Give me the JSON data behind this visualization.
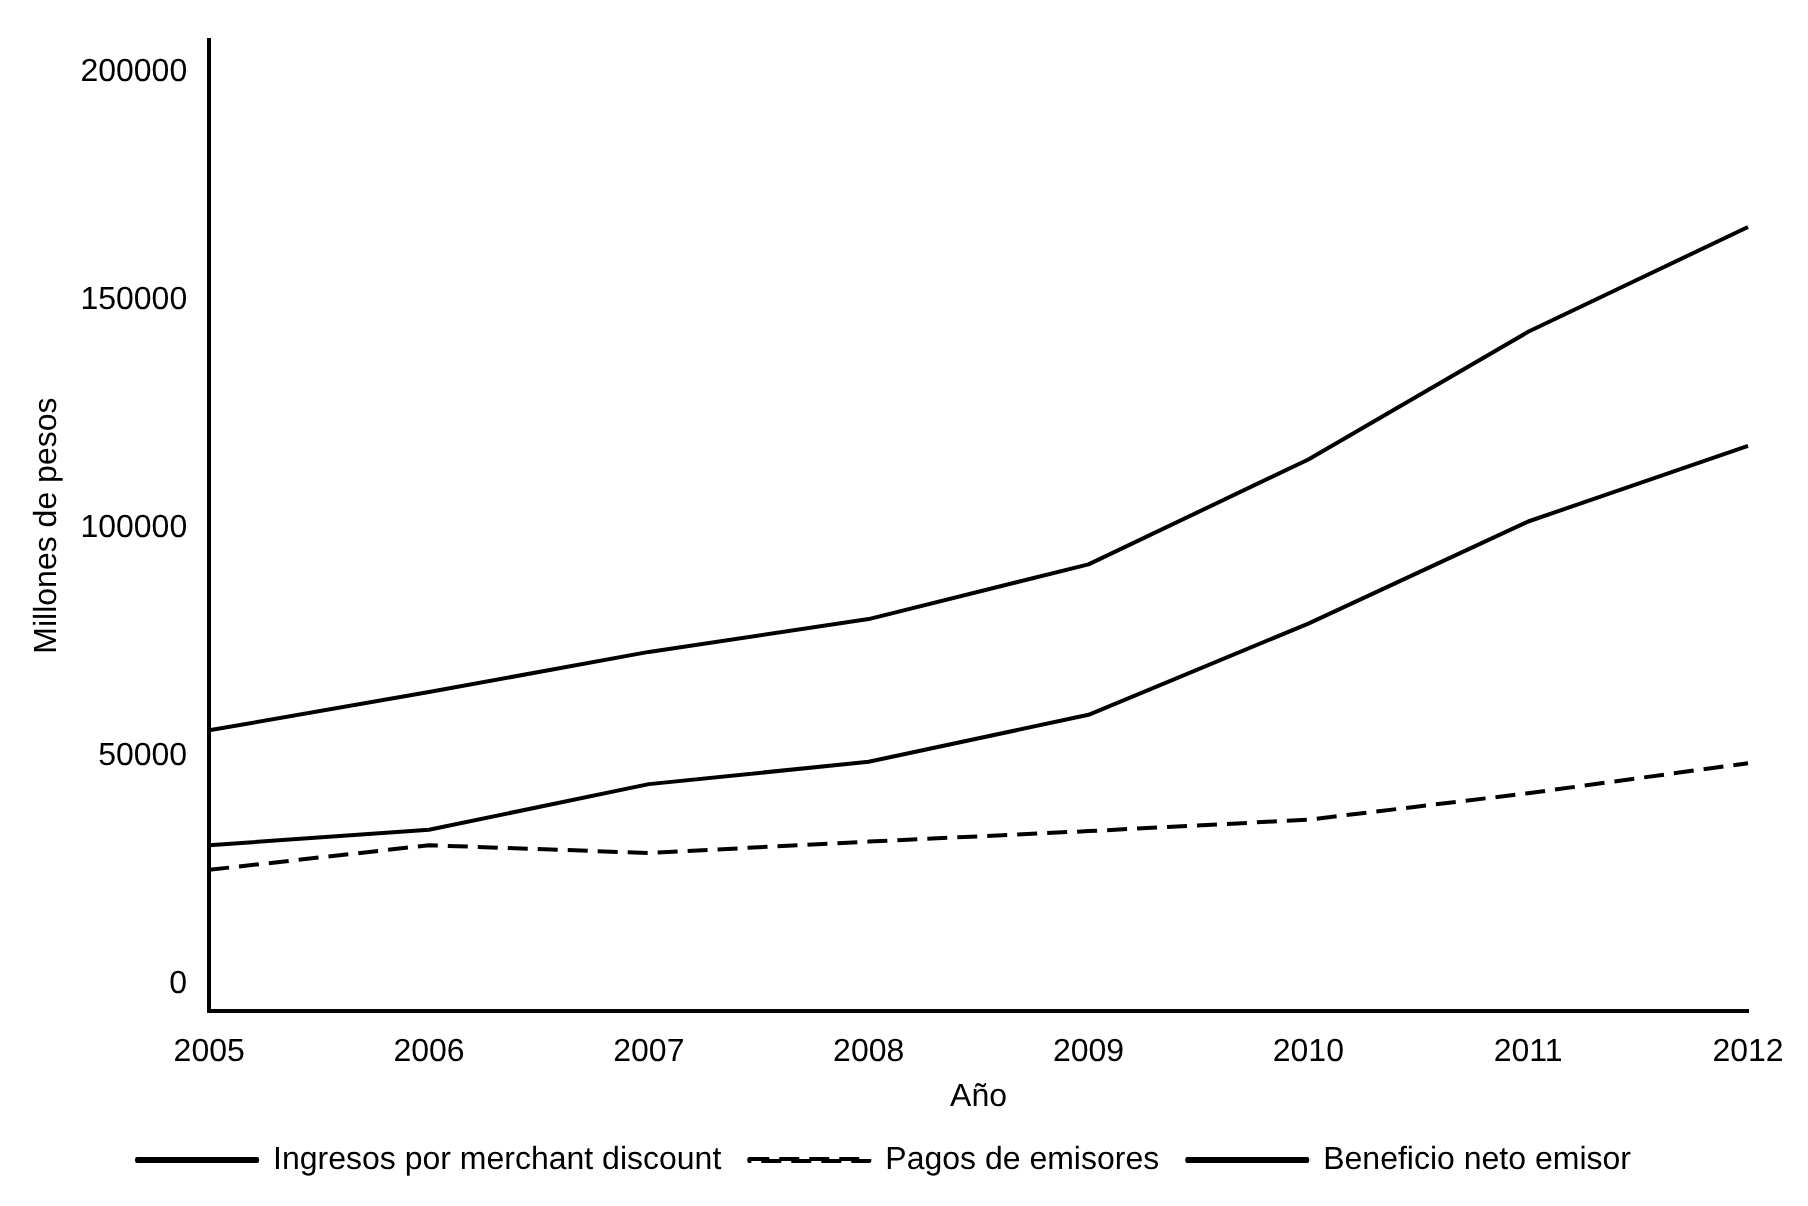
{
  "chart_data": {
    "type": "line",
    "xlabel": "Año",
    "ylabel": "Millones de pesos",
    "categories": [
      "2005",
      "2006",
      "2007",
      "2008",
      "2009",
      "2010",
      "2011",
      "2012"
    ],
    "series": [
      {
        "name": "Ingresos por merchant discount",
        "color": "#000000",
        "line_style": "solid",
        "values": [
          55600,
          64000,
          72800,
          80000,
          92000,
          115000,
          143000,
          166000
        ]
      },
      {
        "name": "Pagos de emisores",
        "color": "#000000",
        "line_style": "dashed",
        "values": [
          25000,
          30400,
          28700,
          31200,
          33500,
          36000,
          41800,
          48400
        ]
      },
      {
        "name": "Beneficio neto emisor",
        "color": "#000000",
        "line_style": "solid",
        "values": [
          30400,
          33800,
          43800,
          48700,
          59000,
          79000,
          101400,
          118000
        ]
      }
    ],
    "ylim": [
      -6000,
      207000
    ],
    "yticks": [
      0,
      50000,
      100000,
      150000,
      200000
    ],
    "grid": false,
    "legend": "bottom",
    "marker": "none"
  }
}
